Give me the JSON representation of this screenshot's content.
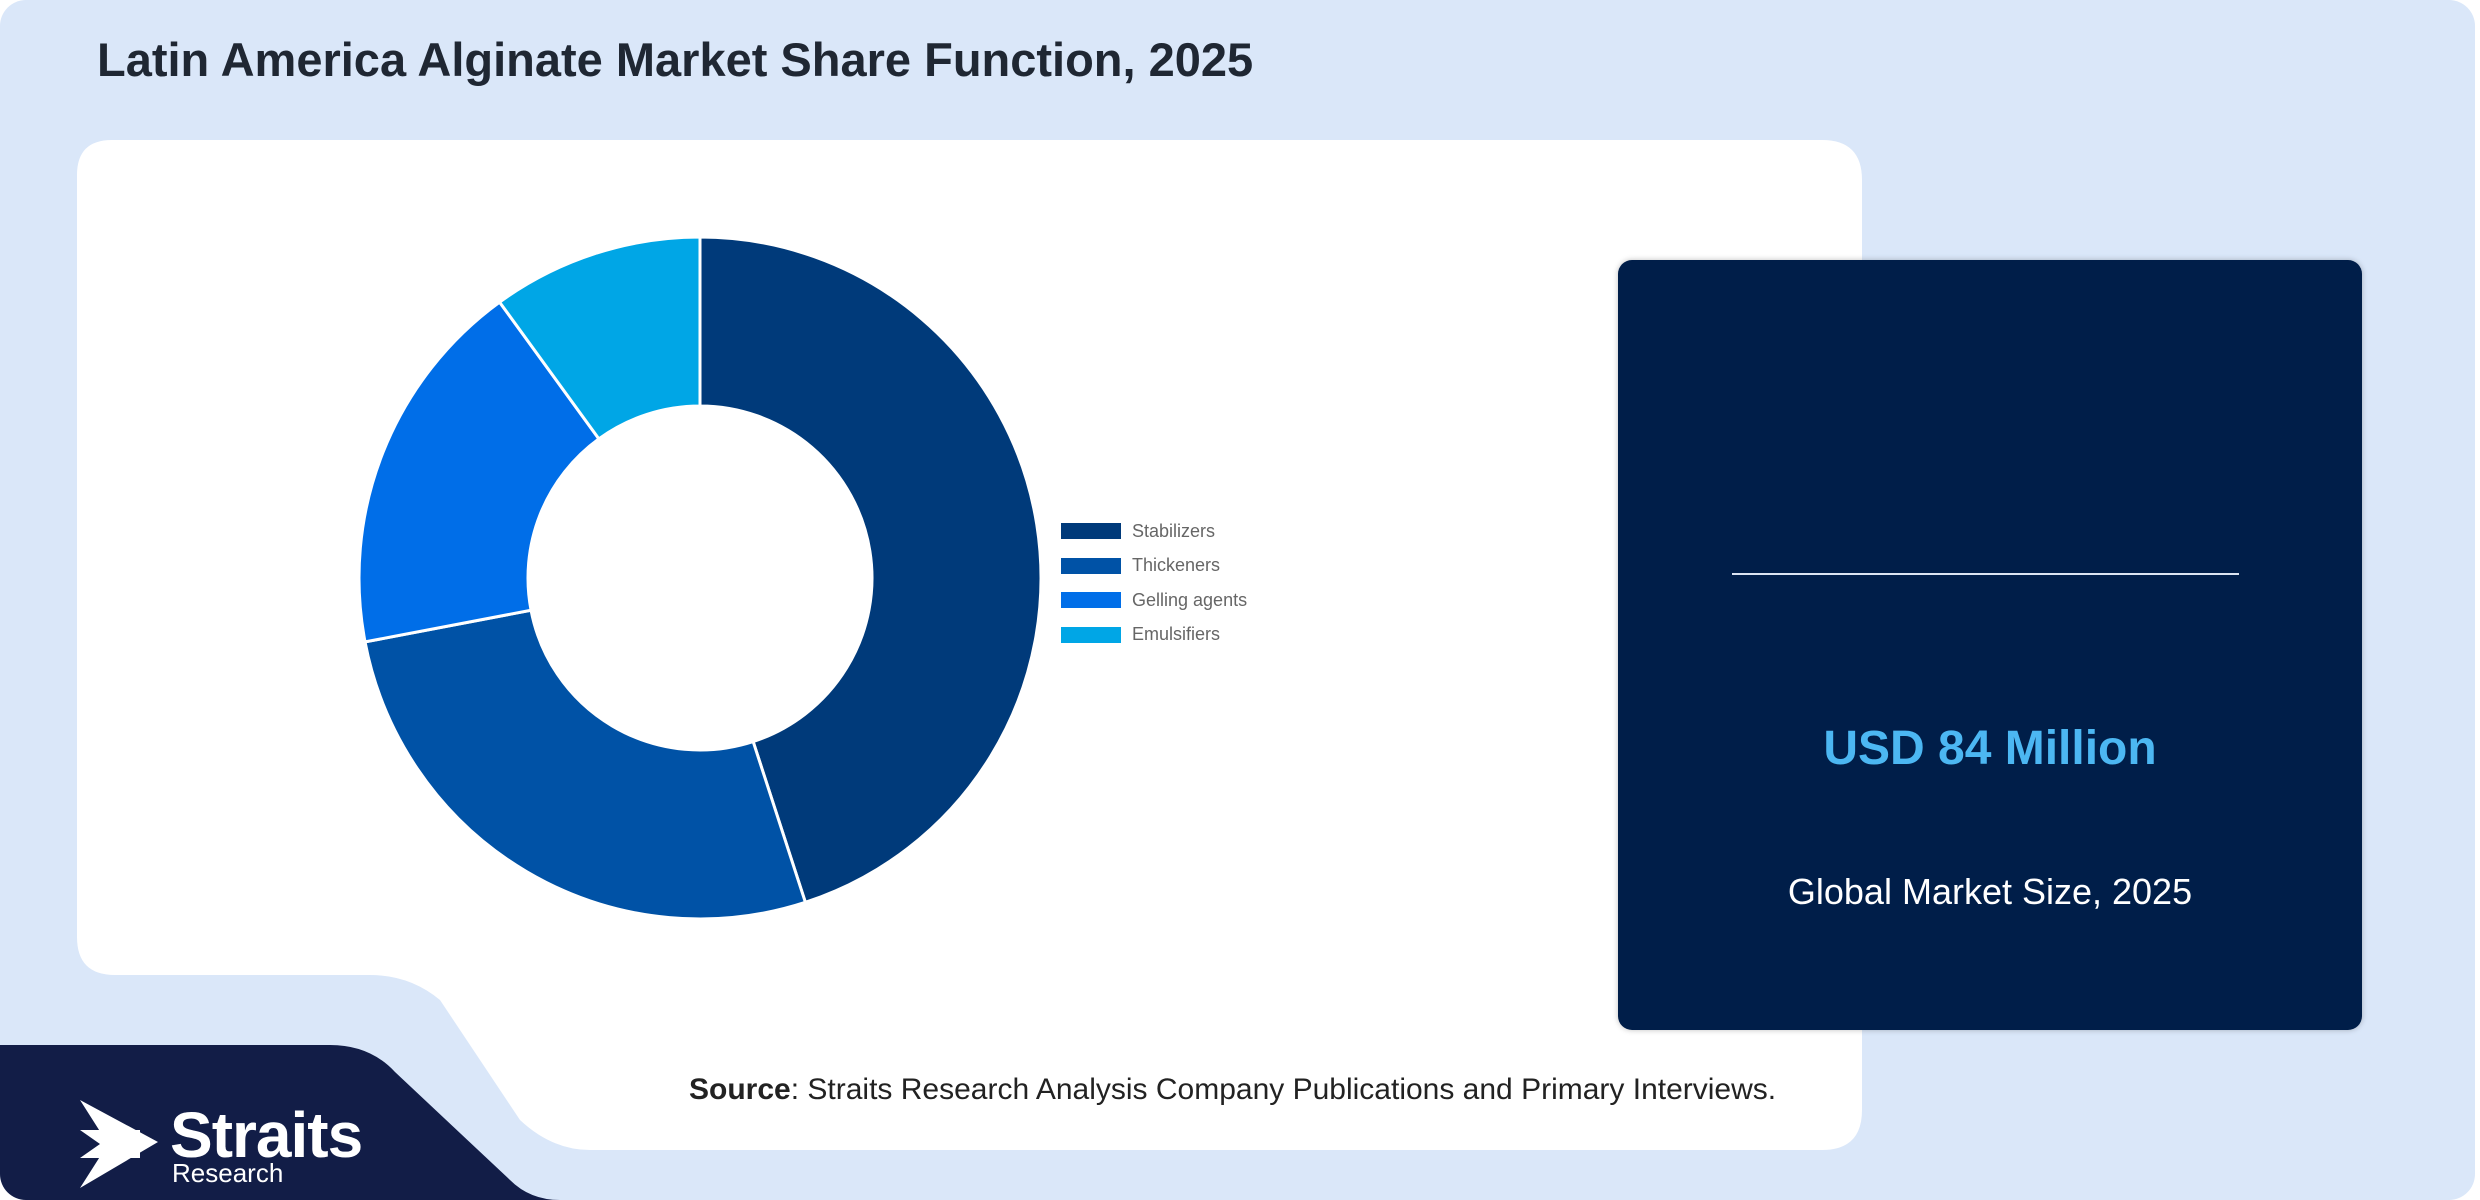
{
  "title": "Latin America Alginate Market Share Function, 2025",
  "chart_data": {
    "type": "pie",
    "variant": "donut",
    "categories": [
      "Stabilizers",
      "Thickeners",
      "Gelling agents",
      "Emulsifiers"
    ],
    "values": [
      45,
      27,
      18,
      10
    ],
    "unit": "%",
    "colors": [
      "#003a7a",
      "#0052a6",
      "#006ee8",
      "#00a6e6"
    ],
    "legend_position": "right"
  },
  "market": {
    "value": "USD 84 Million",
    "label": "Global Market Size, 2025"
  },
  "source": {
    "prefix": "Source",
    "text": ": Straits Research Analysis Company Publications and Primary Interviews."
  },
  "brand": {
    "name": "Straits",
    "sub": "Research"
  }
}
